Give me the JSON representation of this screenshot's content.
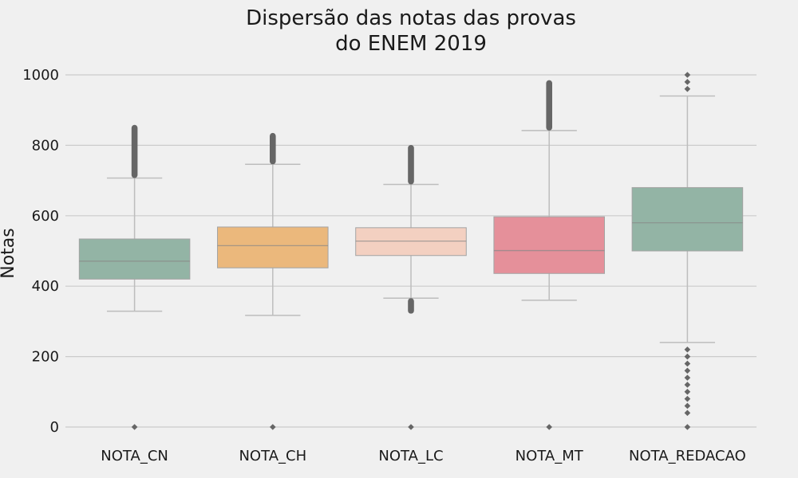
{
  "chart_data": {
    "type": "box",
    "title": [
      "Dispersão das notas das provas",
      "do ENEM 2019"
    ],
    "xlabel": "",
    "ylabel": "Notas",
    "ylim": [
      -20,
      1020
    ],
    "yticks": [
      0,
      200,
      400,
      600,
      800,
      1000
    ],
    "grid": true,
    "categories": [
      "NOTA_CN",
      "NOTA_CH",
      "NOTA_LC",
      "NOTA_MT",
      "NOTA_REDACAO"
    ],
    "boxes": [
      {
        "name": "NOTA_CN",
        "color": "#93b4a5",
        "whisker_low": 329,
        "q1": 420,
        "median": 471,
        "q3": 534,
        "whisker_high": 707,
        "outliers_low": [
          0
        ],
        "outliers_high_range": [
          707,
          858
        ]
      },
      {
        "name": "NOTA_CH",
        "color": "#ebb87c",
        "whisker_low": 317,
        "q1": 452,
        "median": 515,
        "q3": 568,
        "whisker_high": 746,
        "outliers_low": [
          0
        ],
        "outliers_high_range": [
          746,
          835
        ]
      },
      {
        "name": "NOTA_LC",
        "color": "#f3d0c1",
        "whisker_low": 366,
        "q1": 487,
        "median": 528,
        "q3": 566,
        "whisker_high": 689,
        "outliers_low": [
          0
        ],
        "outliers_low_range": [
          322,
          366
        ],
        "outliers_high_range": [
          689,
          801
        ]
      },
      {
        "name": "NOTA_MT",
        "color": "#e5909a",
        "whisker_low": 360,
        "q1": 436,
        "median": 501,
        "q3": 597,
        "whisker_high": 842,
        "outliers_low": [
          0
        ],
        "outliers_high_range": [
          842,
          985
        ]
      },
      {
        "name": "NOTA_REDACAO",
        "color": "#93b4a5",
        "whisker_low": 240,
        "q1": 500,
        "median": 580,
        "q3": 680,
        "whisker_high": 940,
        "outliers_low": [
          0,
          40,
          60,
          80,
          100,
          120,
          140,
          160,
          180,
          200,
          220
        ],
        "outliers_high": [
          960,
          980,
          1000
        ]
      }
    ]
  }
}
